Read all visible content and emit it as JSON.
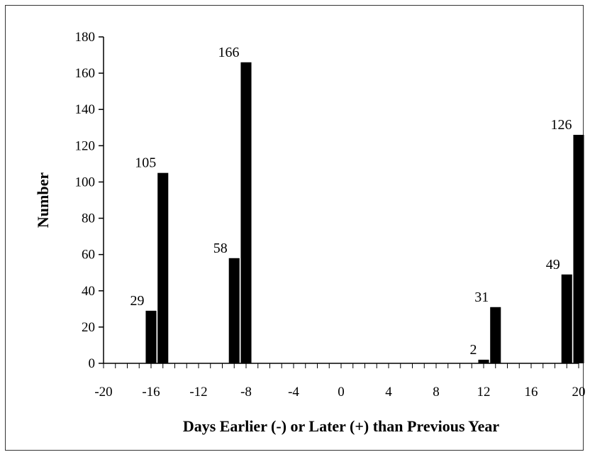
{
  "chart_data": {
    "type": "bar",
    "title": "",
    "xlabel": "Days Earlier (-) or Later (+) than Previous Year",
    "ylabel": "Number",
    "xlim": [
      -20,
      20
    ],
    "ylim": [
      0,
      180
    ],
    "x_ticks": [
      -20,
      -16,
      -12,
      -8,
      -4,
      0,
      4,
      8,
      12,
      16,
      20
    ],
    "y_ticks": [
      0,
      20,
      40,
      60,
      80,
      100,
      120,
      140,
      160,
      180
    ],
    "grid": false,
    "legend": "none",
    "bar_color": "#000000",
    "points": [
      {
        "x": -16,
        "y": 29,
        "label": "29"
      },
      {
        "x": -15,
        "y": 105,
        "label": "105"
      },
      {
        "x": -9,
        "y": 58,
        "label": "58"
      },
      {
        "x": -8,
        "y": 166,
        "label": "166"
      },
      {
        "x": 12,
        "y": 2,
        "label": "2"
      },
      {
        "x": 13,
        "y": 31,
        "label": "31"
      },
      {
        "x": 19,
        "y": 49,
        "label": "49"
      },
      {
        "x": 20,
        "y": 126,
        "label": "126"
      }
    ]
  }
}
